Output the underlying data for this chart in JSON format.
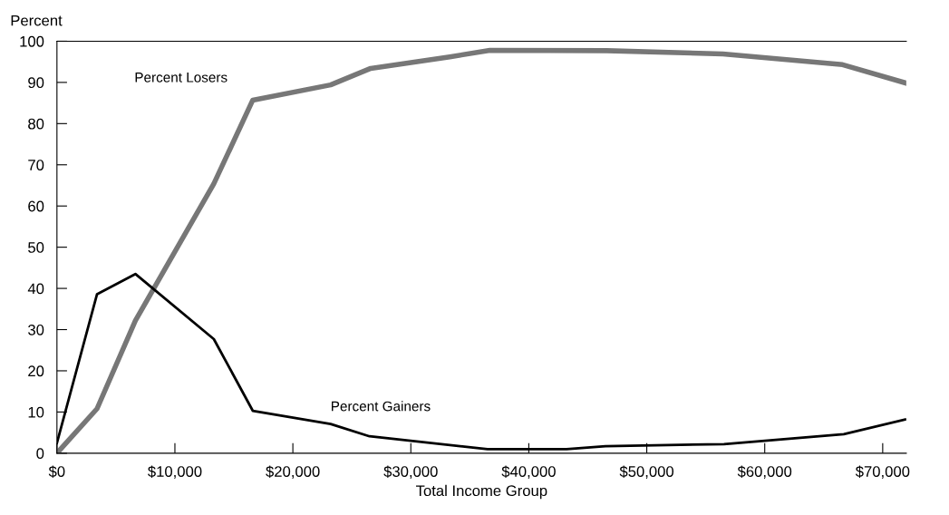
{
  "chart_data": {
    "type": "line",
    "xlabel": "Total Income Group",
    "ylabel": "Percent",
    "xlim": [
      0,
      72000
    ],
    "ylim": [
      0,
      100
    ],
    "xticks": [
      {
        "value": 0,
        "label": "$0"
      },
      {
        "value": 10000,
        "label": "$10,000"
      },
      {
        "value": 20000,
        "label": "$20,000"
      },
      {
        "value": 30000,
        "label": "$30,000"
      },
      {
        "value": 40000,
        "label": "$40,000"
      },
      {
        "value": 50000,
        "label": "$50,000"
      },
      {
        "value": 60000,
        "label": "$60,000"
      },
      {
        "value": 70000,
        "label": "$70,000"
      }
    ],
    "yticks": [
      0,
      10,
      20,
      30,
      40,
      50,
      60,
      70,
      80,
      90,
      100
    ],
    "grid": false,
    "legend": false,
    "marker": "none",
    "line_style": "solid",
    "series": [
      {
        "name": "Percent Losers",
        "color": "#777777",
        "x": [
          0,
          3400,
          6650,
          13300,
          16600,
          23200,
          26600,
          33300,
          36700,
          46600,
          56450,
          66600,
          71900
        ],
        "values": [
          0,
          10.8,
          32.2,
          65.4,
          85.7,
          89.4,
          93.4,
          96.2,
          97.8,
          97.7,
          96.9,
          94.3,
          89.9
        ]
      },
      {
        "name": "Percent Gainers",
        "color": "#000000",
        "x": [
          0,
          3400,
          6650,
          13300,
          16600,
          23200,
          26500,
          36500,
          43200,
          46500,
          56550,
          66700,
          71900
        ],
        "values": [
          2.5,
          38.6,
          43.5,
          27.7,
          10.3,
          7.1,
          4.1,
          1.0,
          1.0,
          1.7,
          2.2,
          4.6,
          8.2
        ]
      }
    ]
  }
}
